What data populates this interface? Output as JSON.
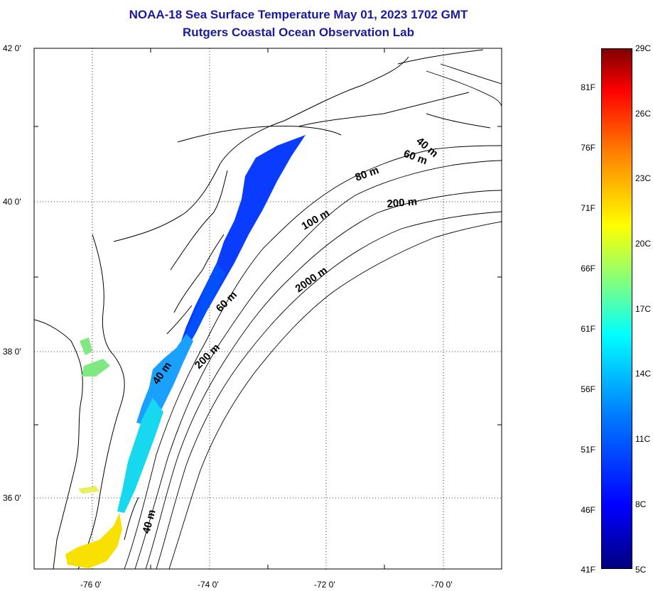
{
  "title": {
    "line1": "NOAA-18 Sea Surface Temperature May 01, 2023 1702 GMT",
    "line2": "Rutgers Coastal Ocean Observation Lab"
  },
  "map": {
    "lat_ticks": [
      "42 0'",
      "40 0'",
      "38 0'",
      "36 0'"
    ],
    "lon_ticks": [
      "-76 0'",
      "-74 0'",
      "-72 0'",
      "-70 0'"
    ],
    "lat_range": [
      35,
      42
    ],
    "lon_range": [
      -77,
      -69
    ],
    "isobath_labels": [
      "40 m",
      "60 m",
      "80 m",
      "200 m",
      "100 m",
      "2000 m",
      "60 m",
      "200 m",
      "40 m",
      "40 m"
    ]
  },
  "colorbar": {
    "fahrenheit": [
      "81F",
      "76F",
      "71F",
      "66F",
      "61F",
      "56F",
      "51F",
      "46F",
      "41F"
    ],
    "celsius": [
      "29C",
      "26C",
      "23C",
      "20C",
      "17C",
      "14C",
      "11C",
      "8C",
      "5C"
    ],
    "range_c": [
      5,
      29
    ],
    "colormap": "jet"
  },
  "colors": {
    "title": "#1a1a9c",
    "cold": "#0000ff",
    "cool": "#00c8ff",
    "mild": "#80ff80",
    "warm": "#ffe000"
  }
}
